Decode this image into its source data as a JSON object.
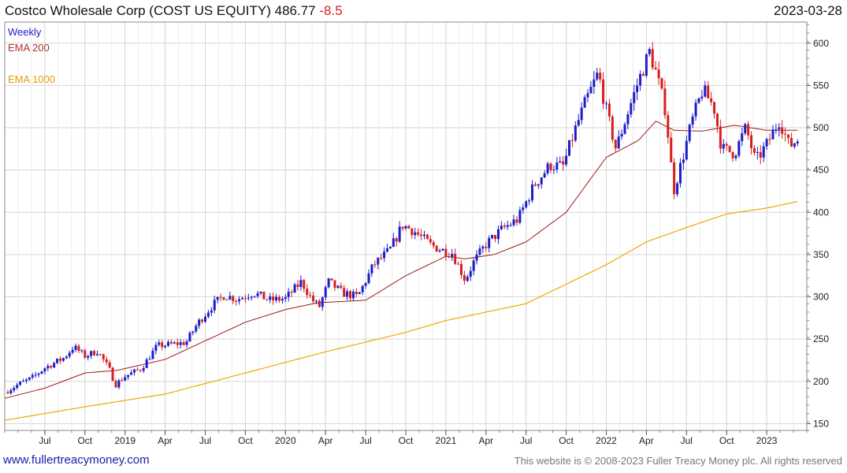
{
  "header": {
    "company": "Costco Wholesale Corp (COST US EQUITY)",
    "price": "486.77",
    "change": "-8.5",
    "date": "2023-03-28"
  },
  "footer": {
    "website": "www.fullertreacymoney.com",
    "copyright": "This website is © 2008-2023 Fuller Treacy Money plc. All rights reserved"
  },
  "colors": {
    "up": "#1c1cc8",
    "down": "#d81e1e",
    "ema200": "#9a1a1a",
    "ema1000": "#f0a800",
    "grid": "#d6d6d6"
  },
  "chart_data": {
    "type": "candlestick",
    "title": "Costco Wholesale Corp (COST US EQUITY)",
    "interval": "Weekly",
    "legend": [
      "Weekly",
      "EMA 200",
      "EMA 1000"
    ],
    "y_axis": {
      "ylim": [
        142,
        625
      ],
      "ticks": [
        150,
        200,
        250,
        300,
        350,
        400,
        450,
        500,
        550,
        600
      ],
      "position": "right"
    },
    "x_axis": {
      "ticks": [
        "Jul",
        "Oct",
        "2019",
        "Apr",
        "Jul",
        "Oct",
        "2020",
        "Apr",
        "Jul",
        "Oct",
        "2021",
        "Apr",
        "Jul",
        "Oct",
        "2022",
        "Apr",
        "Jul",
        "Oct",
        "2023"
      ],
      "tick_years": [
        2018.5,
        2018.75,
        2019.0,
        2019.25,
        2019.5,
        2019.75,
        2020.0,
        2020.25,
        2020.5,
        2020.75,
        2021.0,
        2021.25,
        2021.5,
        2021.75,
        2022.0,
        2022.25,
        2022.5,
        2022.75,
        2023.0
      ],
      "range": [
        2018.25,
        2023.25
      ]
    },
    "close_anchors": [
      [
        2018.25,
        187
      ],
      [
        2018.33,
        196
      ],
      [
        2018.42,
        204
      ],
      [
        2018.5,
        216
      ],
      [
        2018.62,
        228
      ],
      [
        2018.68,
        241
      ],
      [
        2018.75,
        230
      ],
      [
        2018.83,
        236
      ],
      [
        2018.9,
        215
      ],
      [
        2018.94,
        196
      ],
      [
        2019.0,
        206
      ],
      [
        2019.1,
        215
      ],
      [
        2019.2,
        242
      ],
      [
        2019.3,
        244
      ],
      [
        2019.38,
        246
      ],
      [
        2019.45,
        268
      ],
      [
        2019.55,
        291
      ],
      [
        2019.62,
        302
      ],
      [
        2019.7,
        297
      ],
      [
        2019.8,
        305
      ],
      [
        2019.9,
        296
      ],
      [
        2020.0,
        298
      ],
      [
        2020.1,
        318
      ],
      [
        2020.16,
        298
      ],
      [
        2020.21,
        288
      ],
      [
        2020.27,
        318
      ],
      [
        2020.35,
        305
      ],
      [
        2020.45,
        300
      ],
      [
        2020.55,
        338
      ],
      [
        2020.65,
        355
      ],
      [
        2020.73,
        385
      ],
      [
        2020.8,
        378
      ],
      [
        2020.9,
        362
      ],
      [
        2020.98,
        355
      ],
      [
        2021.04,
        352
      ],
      [
        2021.12,
        320
      ],
      [
        2021.17,
        340
      ],
      [
        2021.25,
        362
      ],
      [
        2021.35,
        380
      ],
      [
        2021.45,
        392
      ],
      [
        2021.55,
        432
      ],
      [
        2021.65,
        456
      ],
      [
        2021.73,
        454
      ],
      [
        2021.8,
        495
      ],
      [
        2021.87,
        530
      ],
      [
        2021.95,
        565
      ],
      [
        2022.0,
        520
      ],
      [
        2022.06,
        475
      ],
      [
        2022.12,
        510
      ],
      [
        2022.2,
        555
      ],
      [
        2022.27,
        590
      ],
      [
        2022.31,
        565
      ],
      [
        2022.37,
        520
      ],
      [
        2022.42,
        425
      ],
      [
        2022.47,
        460
      ],
      [
        2022.53,
        505
      ],
      [
        2022.6,
        545
      ],
      [
        2022.67,
        525
      ],
      [
        2022.72,
        475
      ],
      [
        2022.8,
        470
      ],
      [
        2022.87,
        500
      ],
      [
        2022.93,
        460
      ],
      [
        2023.0,
        480
      ],
      [
        2023.08,
        510
      ],
      [
        2023.14,
        478
      ],
      [
        2023.2,
        487
      ]
    ],
    "ema200_anchors": [
      [
        2018.25,
        180
      ],
      [
        2018.5,
        192
      ],
      [
        2018.75,
        210
      ],
      [
        2018.95,
        213
      ],
      [
        2019.25,
        226
      ],
      [
        2019.5,
        248
      ],
      [
        2019.75,
        270
      ],
      [
        2020.0,
        285
      ],
      [
        2020.2,
        293
      ],
      [
        2020.5,
        296
      ],
      [
        2020.75,
        325
      ],
      [
        2021.0,
        348
      ],
      [
        2021.12,
        345
      ],
      [
        2021.3,
        350
      ],
      [
        2021.5,
        365
      ],
      [
        2021.75,
        400
      ],
      [
        2022.0,
        465
      ],
      [
        2022.2,
        485
      ],
      [
        2022.31,
        508
      ],
      [
        2022.42,
        497
      ],
      [
        2022.6,
        496
      ],
      [
        2022.8,
        503
      ],
      [
        2023.0,
        497
      ],
      [
        2023.2,
        497
      ]
    ],
    "ema1000_anchors": [
      [
        2018.25,
        154
      ],
      [
        2018.75,
        170
      ],
      [
        2019.25,
        185
      ],
      [
        2019.75,
        210
      ],
      [
        2020.25,
        235
      ],
      [
        2020.75,
        258
      ],
      [
        2021.0,
        272
      ],
      [
        2021.5,
        292
      ],
      [
        2022.0,
        338
      ],
      [
        2022.25,
        365
      ],
      [
        2022.5,
        382
      ],
      [
        2022.75,
        398
      ],
      [
        2023.0,
        405
      ],
      [
        2023.2,
        413
      ]
    ]
  }
}
